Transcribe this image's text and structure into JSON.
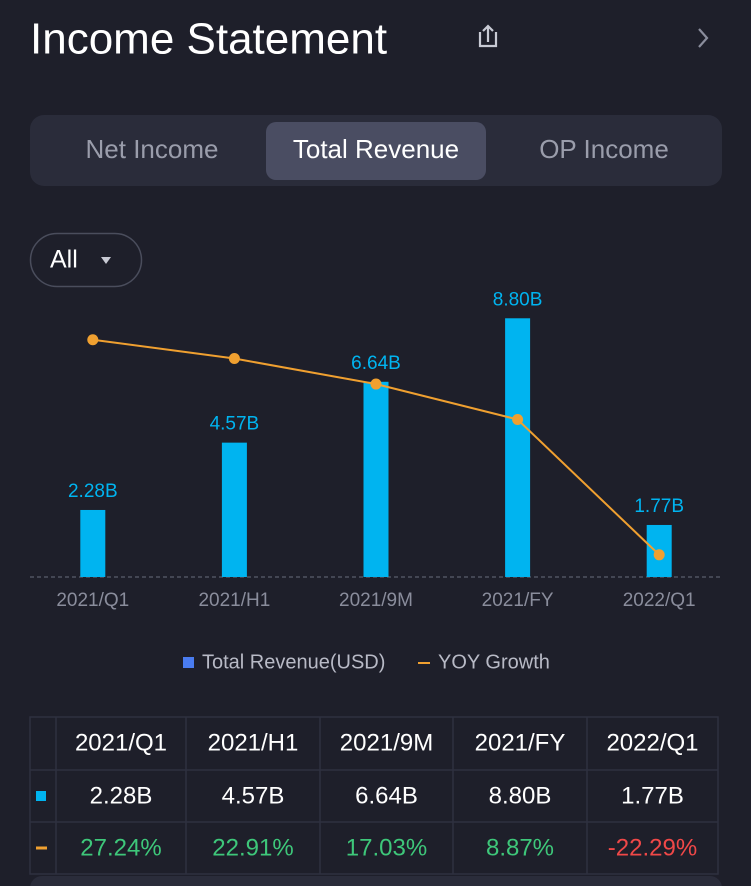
{
  "header": {
    "title": "Income Statement"
  },
  "tabs": [
    "Net Income",
    "Total Revenue",
    "OP Income"
  ],
  "active_tab": 1,
  "filter": {
    "label": "All"
  },
  "chart_data": {
    "type": "bar",
    "categories": [
      "2021/Q1",
      "2021/H1",
      "2021/9M",
      "2021/FY",
      "2022/Q1"
    ],
    "series": [
      {
        "name": "Total Revenue(USD)",
        "color": "#00b4f0",
        "values": [
          2.28,
          4.57,
          6.64,
          8.8,
          1.77
        ],
        "value_labels": [
          "2.28B",
          "4.57B",
          "6.64B",
          "8.80B",
          "1.77B"
        ]
      },
      {
        "name": "YOY Growth",
        "type": "line",
        "axis": "y2",
        "color": "#f0a030",
        "values": [
          27.24,
          22.91,
          17.03,
          8.87,
          -22.29
        ],
        "value_labels": [
          "27.24%",
          "22.91%",
          "17.03%",
          "8.87%",
          "-22.29%"
        ]
      }
    ],
    "ylim": [
      0,
      10
    ],
    "y2lim": [
      -27.4,
      40.3
    ],
    "legend": "bottom"
  }
}
